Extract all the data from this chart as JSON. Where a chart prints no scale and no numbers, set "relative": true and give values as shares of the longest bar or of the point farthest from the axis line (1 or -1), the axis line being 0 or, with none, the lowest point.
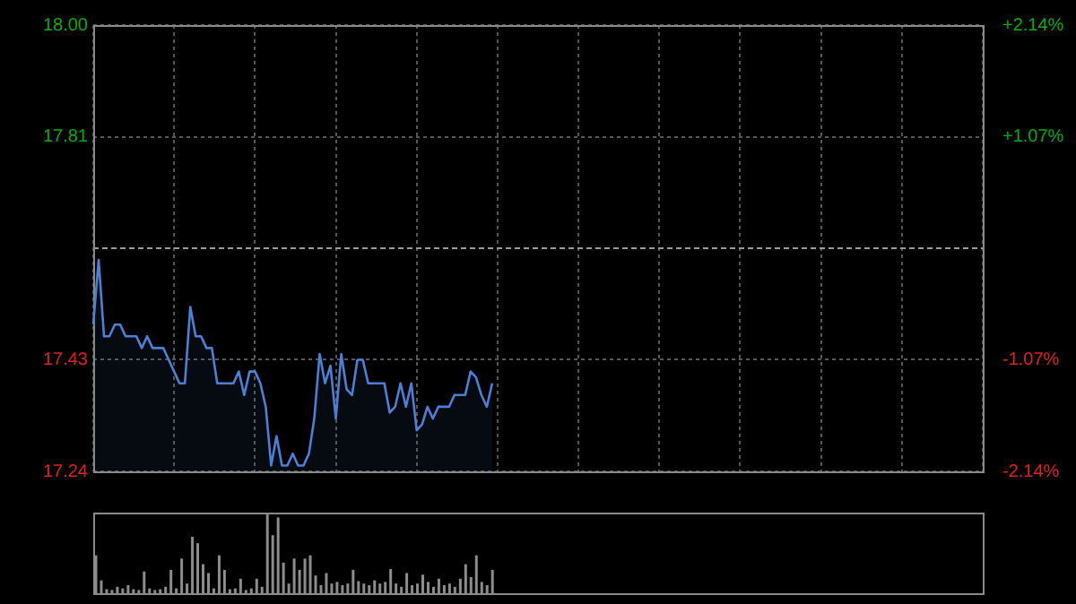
{
  "chart_data": [
    {
      "type": "area",
      "categories": [
        null,
        null,
        null,
        null,
        null,
        null,
        null,
        null,
        null,
        null,
        null,
        null,
        null,
        null,
        null,
        null,
        null,
        null,
        null,
        null,
        null,
        null,
        null,
        null,
        null,
        null,
        null,
        null,
        null,
        null,
        null,
        null,
        null,
        null,
        null,
        null,
        null,
        null,
        null,
        null,
        null,
        null,
        null,
        null,
        null,
        null,
        null,
        null,
        null,
        null,
        null,
        null,
        null,
        null,
        null,
        null,
        null,
        null,
        null,
        null,
        null,
        null,
        null,
        null,
        null,
        null,
        null,
        null,
        null,
        null,
        null,
        null,
        null,
        null,
        null,
        null,
        null,
        null,
        null,
        null,
        null,
        null,
        null,
        null,
        null,
        null,
        null,
        null,
        null,
        null,
        null,
        null,
        null,
        null,
        null,
        null,
        null,
        null,
        null,
        null,
        null,
        null,
        null,
        null,
        null,
        null,
        null,
        null,
        null,
        null,
        null,
        null,
        null,
        null,
        null,
        null,
        null,
        null,
        null,
        null,
        null,
        null,
        null,
        null,
        null,
        null,
        null,
        null,
        null,
        null,
        null,
        null,
        null,
        null,
        null,
        null,
        null,
        null,
        null,
        null,
        null,
        null,
        null,
        null,
        null,
        null,
        null,
        null,
        null,
        null,
        null,
        null,
        null,
        null,
        null,
        null,
        null,
        null,
        null,
        null,
        null,
        null,
        null,
        null,
        null,
        null
      ],
      "values": [
        17.49,
        17.6,
        17.47,
        17.47,
        17.49,
        17.49,
        17.47,
        17.47,
        17.47,
        17.45,
        17.47,
        17.45,
        17.45,
        17.45,
        17.43,
        17.41,
        17.39,
        17.39,
        17.52,
        17.47,
        17.47,
        17.45,
        17.45,
        17.39,
        17.39,
        17.39,
        17.39,
        17.41,
        17.37,
        17.41,
        17.41,
        17.39,
        17.35,
        17.25,
        17.3,
        17.25,
        17.25,
        17.27,
        17.25,
        17.25,
        17.27,
        17.33,
        17.44,
        17.39,
        17.42,
        17.33,
        17.44,
        17.38,
        17.37,
        17.43,
        17.43,
        17.39,
        17.39,
        17.39,
        17.39,
        17.34,
        17.35,
        17.39,
        17.35,
        17.39,
        17.31,
        17.32,
        17.35,
        17.33,
        17.35,
        17.35,
        17.35,
        17.37,
        17.37,
        17.37,
        17.41,
        17.4,
        17.37,
        17.35,
        17.39,
        null,
        null,
        null,
        null,
        null,
        null,
        null,
        null,
        null,
        null,
        null,
        null,
        null,
        null,
        null,
        null,
        null,
        null,
        null,
        null,
        null,
        null,
        null,
        null,
        null,
        null,
        null,
        null,
        null,
        null,
        null,
        null,
        null,
        null,
        null,
        null,
        null,
        null,
        null,
        null,
        null,
        null,
        null,
        null,
        null,
        null,
        null,
        null,
        null,
        null,
        null,
        null,
        null,
        null,
        null,
        null,
        null,
        null,
        null,
        null,
        null,
        null,
        null,
        null,
        null,
        null,
        null,
        null,
        null,
        null,
        null,
        null,
        null,
        null,
        null,
        null,
        null,
        null,
        null,
        null,
        null,
        null,
        null,
        null,
        null,
        null,
        null,
        null,
        null,
        null,
        null
      ],
      "color": "#4a80d8",
      "ylim": [
        17.24,
        18.0
      ],
      "yticks": [
        {
          "value": 18.0,
          "label": "18.00"
        },
        17.81,
        17.43,
        17.24
      ],
      "y2lim": [
        -2.14,
        2.14
      ],
      "y2ticks": [
        {
          "value": 2.14,
          "label": "+2.14%"
        },
        {
          "value": 1.07,
          "label": "+1.07%"
        },
        {
          "value": -1.07,
          "label": "-1.07%"
        },
        {
          "value": -2.14,
          "label": "-2.14%"
        }
      ],
      "grid": true,
      "ref_lines": [
        {
          "axis": "y",
          "value": 17.62,
          "color": "#9a9a9a",
          "line_style": "dashed"
        }
      ]
    },
    {
      "type": "bar",
      "relative": true,
      "categories": [
        null,
        null,
        null,
        null,
        null,
        null,
        null,
        null,
        null,
        null,
        null,
        null,
        null,
        null,
        null,
        null,
        null,
        null,
        null,
        null,
        null,
        null,
        null,
        null,
        null,
        null,
        null,
        null,
        null,
        null,
        null,
        null,
        null,
        null,
        null,
        null,
        null,
        null,
        null,
        null,
        null,
        null,
        null,
        null,
        null,
        null,
        null,
        null,
        null,
        null,
        null,
        null,
        null,
        null,
        null,
        null,
        null,
        null,
        null,
        null,
        null,
        null,
        null,
        null,
        null,
        null,
        null,
        null,
        null,
        null,
        null,
        null,
        null,
        null,
        null,
        null,
        null,
        null,
        null,
        null,
        null,
        null,
        null,
        null,
        null,
        null,
        null,
        null,
        null,
        null,
        null,
        null,
        null,
        null,
        null,
        null,
        null,
        null,
        null,
        null,
        null,
        null,
        null,
        null,
        null,
        null,
        null,
        null,
        null,
        null,
        null,
        null,
        null,
        null,
        null,
        null,
        null,
        null,
        null,
        null,
        null,
        null,
        null,
        null,
        null,
        null,
        null,
        null,
        null,
        null,
        null,
        null,
        null,
        null,
        null,
        null,
        null,
        null,
        null,
        null,
        null,
        null,
        null,
        null,
        null,
        null,
        null,
        null,
        null,
        null,
        null,
        null,
        null,
        null,
        null,
        null,
        null,
        null,
        null,
        null,
        null,
        null,
        null,
        null,
        null,
        null
      ],
      "values": [
        0.47,
        0.16,
        0.05,
        0.04,
        0.08,
        0.06,
        0.1,
        0.05,
        0.04,
        0.27,
        0.06,
        0.04,
        0.05,
        0.08,
        0.29,
        0.06,
        0.43,
        0.12,
        0.7,
        0.62,
        0.36,
        0.25,
        0.06,
        0.47,
        0.29,
        0.05,
        0.06,
        0.18,
        0.04,
        0.06,
        0.18,
        0.08,
        1,
        0.72,
        0.94,
        0.38,
        0.12,
        0.43,
        0.29,
        0.43,
        0.47,
        0.22,
        0.1,
        0.25,
        0.12,
        0.14,
        0.1,
        0.12,
        0.29,
        0.15,
        0.12,
        0.1,
        0.16,
        0.12,
        0.14,
        0.3,
        0.12,
        0.08,
        0.25,
        0.1,
        0.12,
        0.23,
        0.14,
        0.08,
        0.18,
        0.1,
        0.12,
        0.08,
        0.18,
        0.36,
        0.2,
        0.47,
        0.14,
        0.1,
        0.29,
        null,
        null,
        null,
        null,
        null,
        null,
        null,
        null,
        null,
        null,
        null,
        null,
        null,
        null,
        null,
        null,
        null,
        null,
        null,
        null,
        null,
        null,
        null,
        null,
        null,
        null,
        null,
        null,
        null,
        null,
        null,
        null,
        null,
        null,
        null,
        null,
        null,
        null,
        null,
        null,
        null,
        null,
        null,
        null,
        null,
        null,
        null,
        null,
        null,
        null,
        null,
        null,
        null,
        null,
        null,
        null,
        null,
        null,
        null,
        null,
        null,
        null,
        null,
        null,
        null,
        null,
        null,
        null,
        null,
        null,
        null,
        null,
        null,
        null,
        null,
        null,
        null,
        null,
        null,
        null,
        null,
        null,
        null,
        null,
        null,
        null,
        null,
        null,
        null,
        null,
        null
      ],
      "color": "#8c8c8c"
    }
  ]
}
